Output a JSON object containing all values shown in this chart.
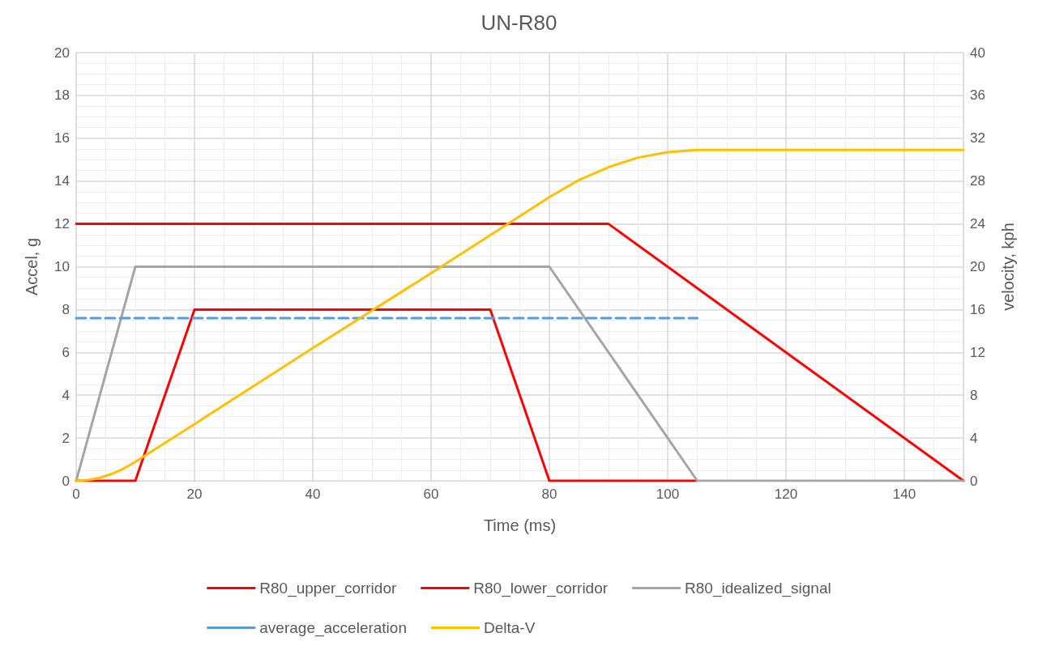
{
  "chart_data": {
    "type": "line",
    "title": "UN-R80",
    "xlabel": "Time (ms)",
    "ylabel": "Accel, g",
    "y2label": "velocity, kph",
    "xlim": [
      0,
      150
    ],
    "xticks": [
      0,
      20,
      40,
      60,
      80,
      100,
      120,
      140
    ],
    "ylim": [
      0,
      20
    ],
    "yticks": [
      0,
      2,
      4,
      6,
      8,
      10,
      12,
      14,
      16,
      18,
      20
    ],
    "y2lim": [
      0,
      40
    ],
    "y2ticks": [
      0,
      4,
      8,
      12,
      16,
      20,
      24,
      28,
      32,
      36,
      40
    ],
    "grid": true,
    "legend": "bottom",
    "marker": "none",
    "series": [
      {
        "name": "R80_upper_corridor",
        "color": "#ff0000",
        "x": [
          0,
          90,
          150
        ],
        "values": [
          12,
          12,
          0
        ]
      },
      {
        "name": "R80_lower_corridor",
        "color": "#ff0000",
        "x": [
          0,
          10,
          20,
          70,
          80,
          105
        ],
        "values": [
          0,
          0,
          8,
          8,
          0,
          0
        ]
      },
      {
        "name": "R80_idealized_signal",
        "color": "#a5a5a5",
        "x": [
          0,
          10,
          80,
          105,
          150
        ],
        "values": [
          0,
          10,
          10,
          0,
          0
        ]
      },
      {
        "name": "average_acceleration",
        "color": "#5b9bd5",
        "line_style": "dashed",
        "x": [
          0,
          105
        ],
        "values": [
          7.6,
          7.6
        ]
      },
      {
        "name": "Delta-V",
        "color": "#ffc000",
        "axis": "y2",
        "x": [
          0,
          2,
          4,
          6,
          8,
          10,
          20,
          40,
          60,
          80,
          85,
          90,
          95,
          100,
          105,
          150
        ],
        "values": [
          0,
          0.07,
          0.28,
          0.64,
          1.13,
          1.77,
          5.3,
          12.4,
          19.4,
          26.5,
          28.1,
          29.3,
          30.2,
          30.7,
          30.9,
          30.9
        ]
      }
    ]
  }
}
